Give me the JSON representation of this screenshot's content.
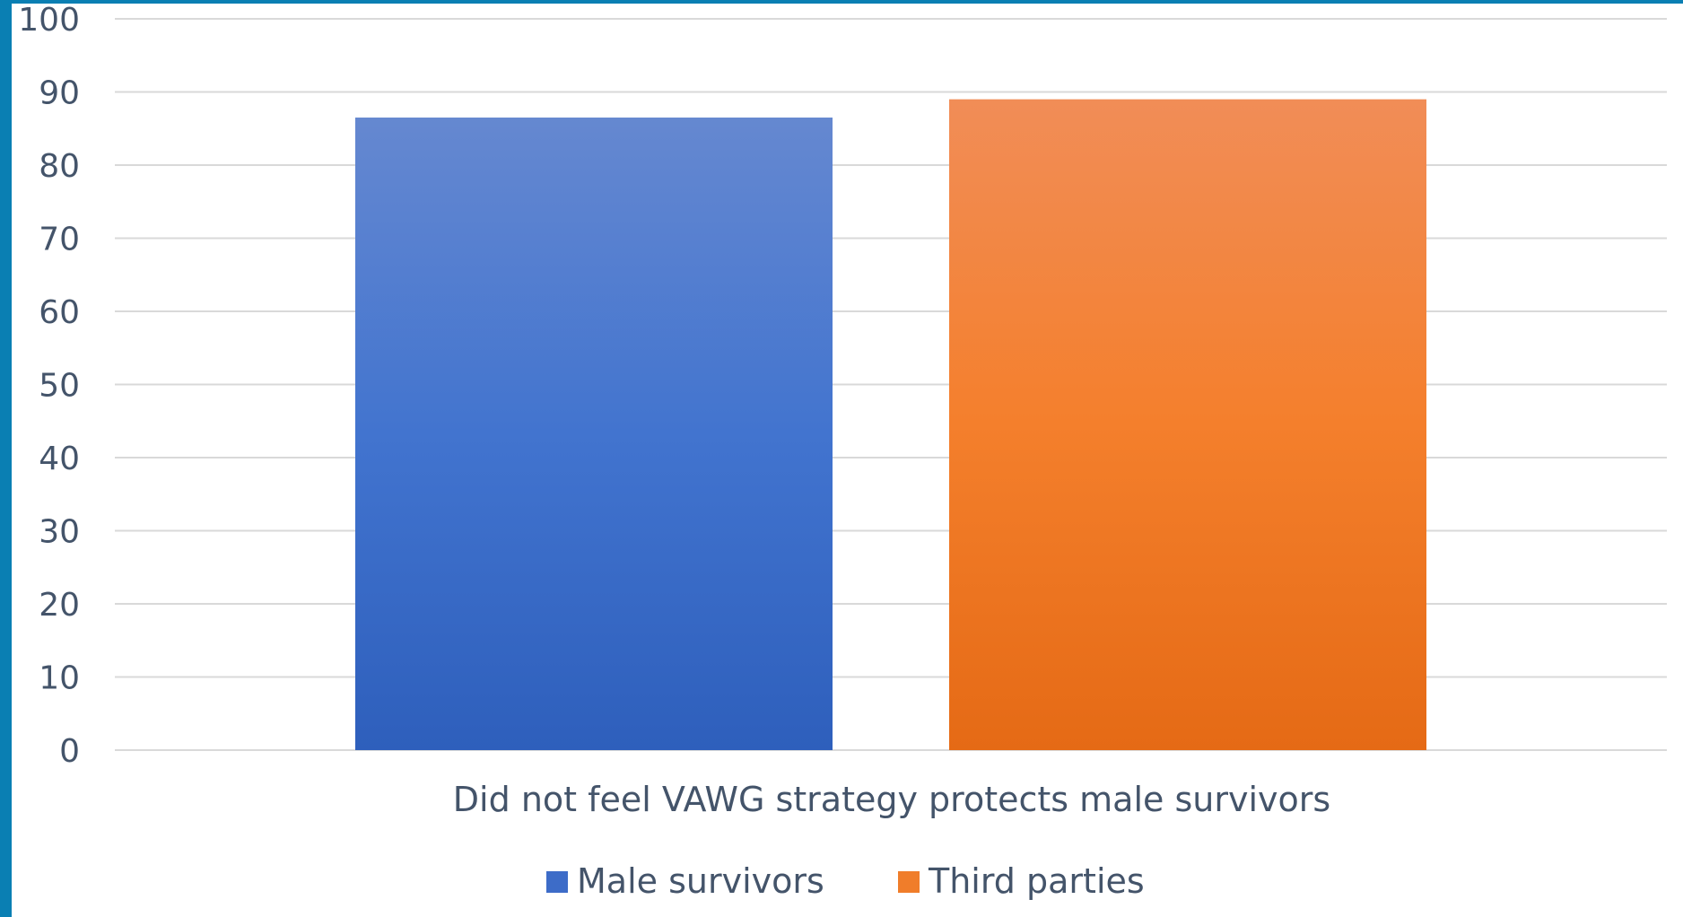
{
  "chart_data": {
    "type": "bar",
    "categories": [
      "Did not feel VAWG strategy protects male survivors"
    ],
    "series": [
      {
        "name": "Male survivors",
        "values": [
          86.5
        ],
        "color": "#3d6cc8"
      },
      {
        "name": "Third parties",
        "values": [
          89
        ],
        "color": "#f07d2a"
      }
    ],
    "ylim": [
      0,
      100
    ],
    "yticks": [
      0,
      10,
      20,
      30,
      40,
      50,
      60,
      70,
      80,
      90,
      100
    ],
    "grid": true,
    "legend_position": "bottom"
  }
}
